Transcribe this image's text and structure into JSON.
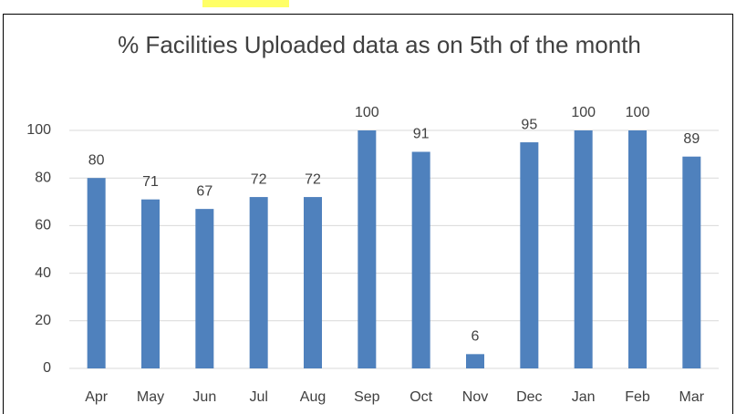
{
  "chart_data": {
    "type": "bar",
    "title": "% Facilities Uploaded data as on 5th of the month",
    "categories": [
      "Apr",
      "May",
      "Jun",
      "Jul",
      "Aug",
      "Sep",
      "Oct",
      "Nov",
      "Dec",
      "Jan",
      "Feb",
      "Mar"
    ],
    "values": [
      80,
      71,
      67,
      72,
      72,
      100,
      91,
      6,
      95,
      100,
      100,
      89
    ],
    "color": "#4f81bd",
    "ylim": [
      0,
      100
    ],
    "yticks": [
      0,
      20,
      40,
      60,
      80,
      100
    ],
    "grid": true
  }
}
